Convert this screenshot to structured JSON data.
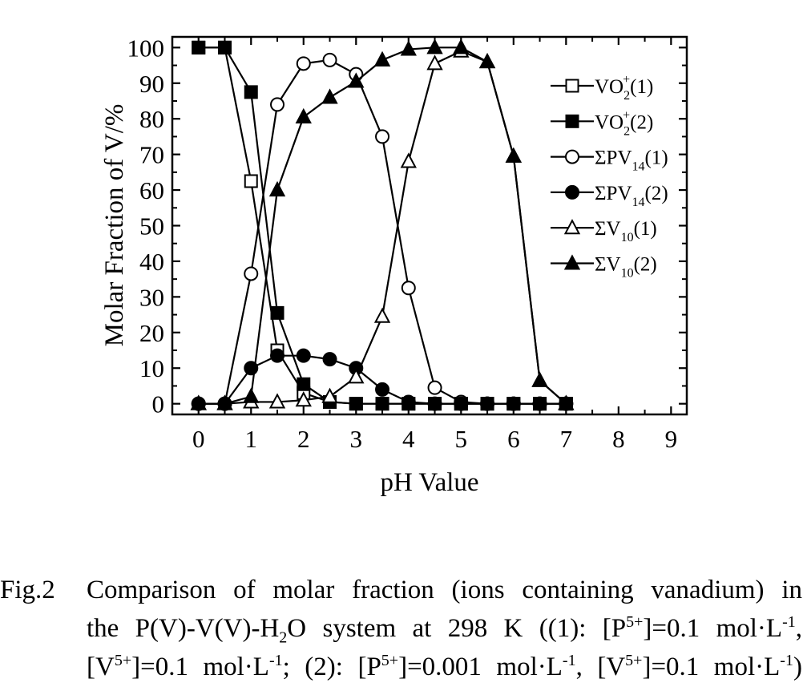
{
  "chart_data": {
    "type": "line",
    "xlabel": "pH Value",
    "ylabel": "Molar Fraction of V/%",
    "xlim": [
      -0.5,
      9.3
    ],
    "ylim": [
      -3,
      103
    ],
    "xticks": [
      "0",
      "1",
      "2",
      "3",
      "4",
      "5",
      "6",
      "7",
      "8",
      "9"
    ],
    "yticks": [
      "0",
      "10",
      "20",
      "30",
      "40",
      "50",
      "60",
      "70",
      "80",
      "90",
      "100"
    ],
    "legend_position": "right",
    "grid": false,
    "series": [
      {
        "name": "VO2+(1)",
        "legend": {
          "base": "VO",
          "sub": "2",
          "sup": "+",
          "suffix": "(1)"
        },
        "marker": "square-open",
        "x": [
          0,
          0.5,
          1,
          1.5,
          2,
          2.5,
          3,
          3.5,
          4,
          4.5,
          5,
          5.5,
          6,
          6.5,
          7
        ],
        "y": [
          100,
          100,
          62.5,
          15,
          3,
          0.5,
          0,
          0,
          0,
          0,
          0,
          0,
          0,
          0,
          0
        ]
      },
      {
        "name": "VO2+(2)",
        "legend": {
          "base": "VO",
          "sub": "2",
          "sup": "+",
          "suffix": "(2)"
        },
        "marker": "square-filled",
        "x": [
          0,
          0.5,
          1,
          1.5,
          2,
          2.5,
          3,
          3.5,
          4,
          4.5,
          5,
          5.5,
          6,
          6.5,
          7
        ],
        "y": [
          100,
          100,
          87.5,
          25.5,
          5.5,
          0.5,
          0,
          0,
          0,
          0,
          0,
          0,
          0,
          0,
          0
        ]
      },
      {
        "name": "ΣPV14(1)",
        "legend": {
          "base": "ΣPV",
          "sub": "14",
          "sup": "",
          "suffix": "(1)"
        },
        "marker": "circle-open",
        "x": [
          0,
          0.5,
          1,
          1.5,
          2,
          2.5,
          3,
          3.5,
          4,
          4.5,
          5,
          5.5,
          6,
          6.5,
          7
        ],
        "y": [
          0,
          0,
          36.5,
          84,
          95.5,
          96.5,
          92.5,
          75,
          32.5,
          4.5,
          0.5,
          0,
          0,
          0,
          0
        ]
      },
      {
        "name": "ΣPV14(2)",
        "legend": {
          "base": "ΣPV",
          "sub": "14",
          "sup": "",
          "suffix": "(2)"
        },
        "marker": "circle-filled",
        "x": [
          0,
          0.5,
          1,
          1.5,
          2,
          2.5,
          3,
          3.5,
          4,
          4.5,
          5,
          5.5,
          6,
          6.5,
          7
        ],
        "y": [
          0,
          0,
          10,
          13.5,
          13.5,
          12.5,
          10,
          4,
          0.5,
          0,
          0,
          0,
          0,
          0,
          0
        ]
      },
      {
        "name": "ΣV10(1)",
        "legend": {
          "base": "ΣV",
          "sub": "10",
          "sup": "",
          "suffix": "(1)"
        },
        "marker": "triangle-open",
        "x": [
          0,
          0.5,
          1,
          1.5,
          2,
          2.5,
          3,
          3.5,
          4,
          4.5,
          5,
          5.5,
          6,
          6.5,
          7
        ],
        "y": [
          0,
          0,
          0.5,
          0.5,
          1,
          2,
          7.5,
          24.5,
          68,
          95.5,
          99,
          96,
          69.5,
          6.5,
          0
        ]
      },
      {
        "name": "ΣV10(2)",
        "legend": {
          "base": "ΣV",
          "sub": "10",
          "sup": "",
          "suffix": "(2)"
        },
        "marker": "triangle-filled",
        "x": [
          0,
          0.5,
          1,
          1.5,
          2,
          2.5,
          3,
          3.5,
          4,
          4.5,
          5,
          5.5,
          6,
          6.5,
          7
        ],
        "y": [
          0,
          0,
          2,
          60,
          80.5,
          86,
          90.5,
          96.5,
          99.5,
          100,
          100,
          96,
          69.5,
          6.5,
          0
        ]
      }
    ]
  },
  "caption": {
    "figure_number": "Fig.2",
    "line1": "Comparison of molar fraction (ions containing vanadium) in",
    "line2_a": "the P(V)-V(V)-H",
    "line2_sub": "2",
    "line2_b": "O system at 298 K ((1): [P",
    "line2_sup1": "5+",
    "line2_c": "]=0.1 mol·L",
    "line2_sup2": "-1",
    "line2_d": ",",
    "line3_a": "[V",
    "line3_sup1": "5+",
    "line3_b": "]=0.1 mol·L",
    "line3_sup2": "-1",
    "line3_c": "; (2): [P",
    "line3_sup3": "5+",
    "line3_d": "]=0.001 mol·L",
    "line3_sup4": "-1",
    "line3_e": ", [V",
    "line3_sup5": "5+",
    "line3_f": "]=0.1 mol·L",
    "line3_sup6": "-1",
    "line3_g": ")"
  }
}
